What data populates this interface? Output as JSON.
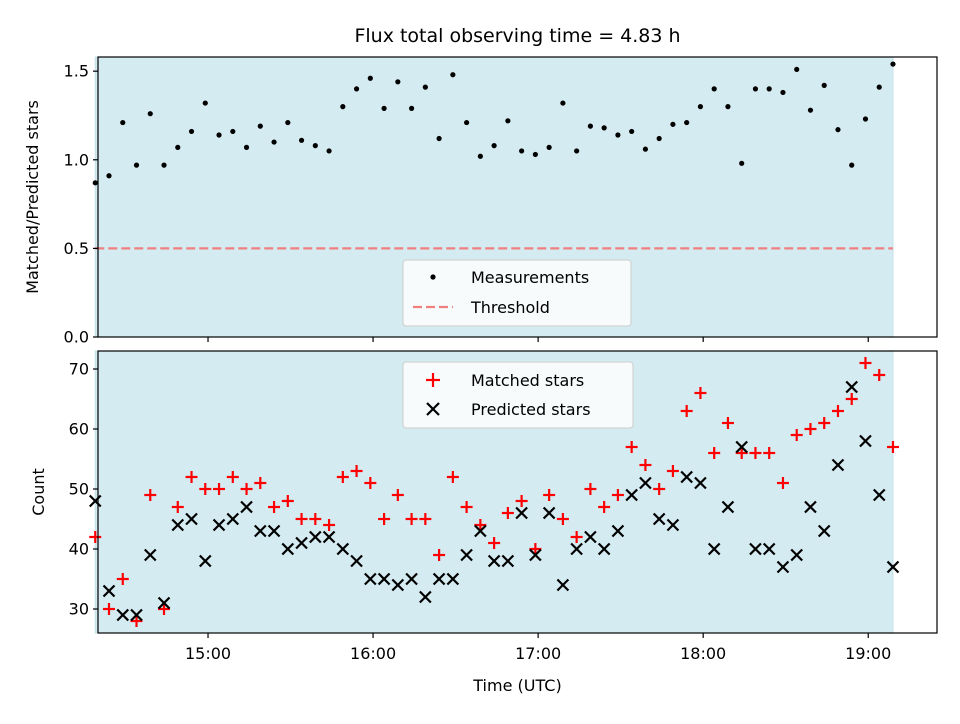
{
  "chart_data": [
    {
      "type": "scatter",
      "title": "Flux total observing time = 4.83 h",
      "ylabel": "Matched/Predicted stars",
      "xlabel": "",
      "xlim": [
        "14:20",
        "19:25"
      ],
      "ylim": [
        0,
        1.58
      ],
      "yticks": [
        "0.0",
        "0.5",
        "1.0",
        "1.5"
      ],
      "shaded_span": [
        "14:20",
        "19:09"
      ],
      "legend": {
        "placement": "lower-center",
        "entries": [
          "Measurements",
          "Threshold"
        ]
      },
      "colors": {
        "measurements": "#000000",
        "threshold": "#f08080",
        "shade": "#d4ebf1"
      },
      "threshold": 0.5,
      "series": [
        {
          "name": "Measurements",
          "points": [
            [
              "14:19",
              0.87
            ],
            [
              "14:24",
              0.91
            ],
            [
              "14:29",
              1.21
            ],
            [
              "14:34",
              0.97
            ],
            [
              "14:39",
              1.26
            ],
            [
              "14:44",
              0.97
            ],
            [
              "14:49",
              1.07
            ],
            [
              "14:54",
              1.16
            ],
            [
              "14:59",
              1.32
            ],
            [
              "15:04",
              1.14
            ],
            [
              "15:09",
              1.16
            ],
            [
              "15:14",
              1.07
            ],
            [
              "15:19",
              1.19
            ],
            [
              "15:24",
              1.1
            ],
            [
              "15:29",
              1.21
            ],
            [
              "15:34",
              1.11
            ],
            [
              "15:39",
              1.08
            ],
            [
              "15:44",
              1.05
            ],
            [
              "15:49",
              1.3
            ],
            [
              "15:54",
              1.4
            ],
            [
              "15:59",
              1.46
            ],
            [
              "16:04",
              1.29
            ],
            [
              "16:09",
              1.44
            ],
            [
              "16:14",
              1.29
            ],
            [
              "16:19",
              1.41
            ],
            [
              "16:24",
              1.12
            ],
            [
              "16:29",
              1.48
            ],
            [
              "16:34",
              1.21
            ],
            [
              "16:39",
              1.02
            ],
            [
              "16:44",
              1.08
            ],
            [
              "16:49",
              1.22
            ],
            [
              "16:54",
              1.05
            ],
            [
              "16:59",
              1.03
            ],
            [
              "17:04",
              1.07
            ],
            [
              "17:09",
              1.32
            ],
            [
              "17:14",
              1.05
            ],
            [
              "17:19",
              1.19
            ],
            [
              "17:24",
              1.18
            ],
            [
              "17:29",
              1.14
            ],
            [
              "17:34",
              1.16
            ],
            [
              "17:39",
              1.06
            ],
            [
              "17:44",
              1.12
            ],
            [
              "17:49",
              1.2
            ],
            [
              "17:54",
              1.21
            ],
            [
              "17:59",
              1.3
            ],
            [
              "18:04",
              1.4
            ],
            [
              "18:09",
              1.3
            ],
            [
              "18:14",
              0.98
            ],
            [
              "18:19",
              1.4
            ],
            [
              "18:24",
              1.4
            ],
            [
              "18:29",
              1.38
            ],
            [
              "18:34",
              1.51
            ],
            [
              "18:39",
              1.28
            ],
            [
              "18:44",
              1.42
            ],
            [
              "18:49",
              1.17
            ],
            [
              "18:54",
              0.97
            ],
            [
              "18:59",
              1.23
            ],
            [
              "19:04",
              1.41
            ],
            [
              "19:09",
              1.54
            ]
          ]
        }
      ]
    },
    {
      "type": "scatter",
      "title": "",
      "ylabel": "Count",
      "xlabel": "Time (UTC)",
      "xlim": [
        "14:20",
        "19:25"
      ],
      "ylim": [
        26,
        73
      ],
      "yticks": [
        "30",
        "40",
        "50",
        "60",
        "70"
      ],
      "xticks": [
        "15:00",
        "16:00",
        "17:00",
        "18:00",
        "19:00"
      ],
      "shaded_span": [
        "14:20",
        "19:09"
      ],
      "legend": {
        "placement": "upper-center",
        "entries": [
          "Matched stars",
          "Predicted stars"
        ]
      },
      "colors": {
        "matched": "#ff0000",
        "predicted": "#000000",
        "shade": "#d4ebf1"
      },
      "series": [
        {
          "name": "Matched stars",
          "points": [
            [
              "14:19",
              42
            ],
            [
              "14:24",
              30
            ],
            [
              "14:29",
              35
            ],
            [
              "14:34",
              28
            ],
            [
              "14:39",
              49
            ],
            [
              "14:44",
              30
            ],
            [
              "14:49",
              47
            ],
            [
              "14:54",
              52
            ],
            [
              "14:59",
              50
            ],
            [
              "15:04",
              50
            ],
            [
              "15:09",
              52
            ],
            [
              "15:14",
              50
            ],
            [
              "15:19",
              51
            ],
            [
              "15:24",
              47
            ],
            [
              "15:29",
              48
            ],
            [
              "15:34",
              45
            ],
            [
              "15:39",
              45
            ],
            [
              "15:44",
              44
            ],
            [
              "15:49",
              52
            ],
            [
              "15:54",
              53
            ],
            [
              "15:59",
              51
            ],
            [
              "16:04",
              45
            ],
            [
              "16:09",
              49
            ],
            [
              "16:14",
              45
            ],
            [
              "16:19",
              45
            ],
            [
              "16:24",
              39
            ],
            [
              "16:29",
              52
            ],
            [
              "16:34",
              47
            ],
            [
              "16:39",
              44
            ],
            [
              "16:44",
              41
            ],
            [
              "16:49",
              46
            ],
            [
              "16:54",
              48
            ],
            [
              "16:59",
              40
            ],
            [
              "17:04",
              49
            ],
            [
              "17:09",
              45
            ],
            [
              "17:14",
              42
            ],
            [
              "17:19",
              50
            ],
            [
              "17:24",
              47
            ],
            [
              "17:29",
              49
            ],
            [
              "17:34",
              57
            ],
            [
              "17:39",
              54
            ],
            [
              "17:44",
              50
            ],
            [
              "17:49",
              53
            ],
            [
              "17:54",
              63
            ],
            [
              "17:59",
              66
            ],
            [
              "18:04",
              56
            ],
            [
              "18:09",
              61
            ],
            [
              "18:14",
              56
            ],
            [
              "18:19",
              56
            ],
            [
              "18:24",
              56
            ],
            [
              "18:29",
              51
            ],
            [
              "18:34",
              59
            ],
            [
              "18:39",
              60
            ],
            [
              "18:44",
              61
            ],
            [
              "18:49",
              63
            ],
            [
              "18:54",
              65
            ],
            [
              "18:59",
              71
            ],
            [
              "19:04",
              69
            ],
            [
              "19:09",
              57
            ]
          ]
        },
        {
          "name": "Predicted stars",
          "points": [
            [
              "14:19",
              48
            ],
            [
              "14:24",
              33
            ],
            [
              "14:29",
              29
            ],
            [
              "14:34",
              29
            ],
            [
              "14:39",
              39
            ],
            [
              "14:44",
              31
            ],
            [
              "14:49",
              44
            ],
            [
              "14:54",
              45
            ],
            [
              "14:59",
              38
            ],
            [
              "15:04",
              44
            ],
            [
              "15:09",
              45
            ],
            [
              "15:14",
              47
            ],
            [
              "15:19",
              43
            ],
            [
              "15:24",
              43
            ],
            [
              "15:29",
              40
            ],
            [
              "15:34",
              41
            ],
            [
              "15:39",
              42
            ],
            [
              "15:44",
              42
            ],
            [
              "15:49",
              40
            ],
            [
              "15:54",
              38
            ],
            [
              "15:59",
              35
            ],
            [
              "16:04",
              35
            ],
            [
              "16:09",
              34
            ],
            [
              "16:14",
              35
            ],
            [
              "16:19",
              32
            ],
            [
              "16:24",
              35
            ],
            [
              "16:29",
              35
            ],
            [
              "16:34",
              39
            ],
            [
              "16:39",
              43
            ],
            [
              "16:44",
              38
            ],
            [
              "16:49",
              38
            ],
            [
              "16:54",
              46
            ],
            [
              "16:59",
              39
            ],
            [
              "17:04",
              46
            ],
            [
              "17:09",
              34
            ],
            [
              "17:14",
              40
            ],
            [
              "17:19",
              42
            ],
            [
              "17:24",
              40
            ],
            [
              "17:29",
              43
            ],
            [
              "17:34",
              49
            ],
            [
              "17:39",
              51
            ],
            [
              "17:44",
              45
            ],
            [
              "17:49",
              44
            ],
            [
              "17:54",
              52
            ],
            [
              "17:59",
              51
            ],
            [
              "18:04",
              40
            ],
            [
              "18:09",
              47
            ],
            [
              "18:14",
              57
            ],
            [
              "18:19",
              40
            ],
            [
              "18:24",
              40
            ],
            [
              "18:29",
              37
            ],
            [
              "18:34",
              39
            ],
            [
              "18:39",
              47
            ],
            [
              "18:44",
              43
            ],
            [
              "18:49",
              54
            ],
            [
              "18:54",
              67
            ],
            [
              "18:59",
              58
            ],
            [
              "19:04",
              49
            ],
            [
              "19:09",
              37
            ]
          ]
        }
      ]
    }
  ]
}
